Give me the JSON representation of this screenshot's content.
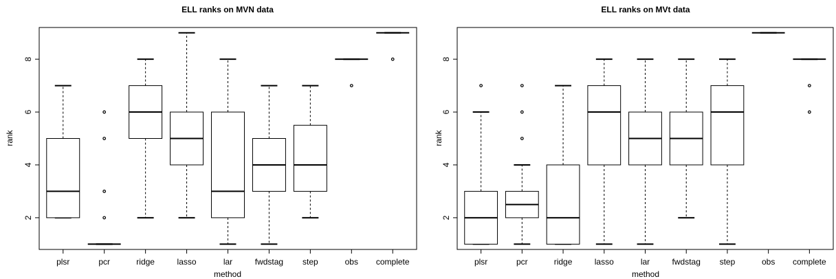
{
  "chart_data": [
    {
      "type": "boxplot",
      "title": "ELL ranks on MVN data",
      "xlabel": "method",
      "ylabel": "rank",
      "ylim": [
        0.8,
        9.2
      ],
      "yticks": [
        "2",
        "4",
        "6",
        "8"
      ],
      "grid": false,
      "categories": [
        "plsr",
        "pcr",
        "ridge",
        "lasso",
        "lar",
        "fwdstag",
        "step",
        "obs",
        "complete"
      ],
      "boxes": [
        {
          "whisker_low": 2,
          "q1": 2,
          "median": 3,
          "q3": 5,
          "whisker_high": 7,
          "outliers": []
        },
        {
          "whisker_low": 1,
          "q1": 1,
          "median": 1,
          "q3": 1,
          "whisker_high": 1,
          "outliers": [
            2,
            3,
            5,
            6
          ]
        },
        {
          "whisker_low": 2,
          "q1": 5,
          "median": 6,
          "q3": 7,
          "whisker_high": 8,
          "outliers": []
        },
        {
          "whisker_low": 2,
          "q1": 4,
          "median": 5,
          "q3": 6,
          "whisker_high": 9,
          "outliers": []
        },
        {
          "whisker_low": 1,
          "q1": 2,
          "median": 3,
          "q3": 6,
          "whisker_high": 8,
          "outliers": []
        },
        {
          "whisker_low": 1,
          "q1": 3,
          "median": 4,
          "q3": 5,
          "whisker_high": 7,
          "outliers": []
        },
        {
          "whisker_low": 2,
          "q1": 3,
          "median": 4,
          "q3": 5.5,
          "whisker_high": 7,
          "outliers": []
        },
        {
          "whisker_low": 8,
          "q1": 8,
          "median": 8,
          "q3": 8,
          "whisker_high": 8,
          "outliers": [
            7
          ]
        },
        {
          "whisker_low": 9,
          "q1": 9,
          "median": 9,
          "q3": 9,
          "whisker_high": 9,
          "outliers": [
            8
          ]
        }
      ]
    },
    {
      "type": "boxplot",
      "title": "ELL ranks on MVt data",
      "xlabel": "method",
      "ylabel": "rank",
      "ylim": [
        0.8,
        9.2
      ],
      "yticks": [
        "2",
        "4",
        "6",
        "8"
      ],
      "grid": false,
      "categories": [
        "plsr",
        "pcr",
        "ridge",
        "lasso",
        "lar",
        "fwdstag",
        "step",
        "obs",
        "complete"
      ],
      "boxes": [
        {
          "whisker_low": 1,
          "q1": 1,
          "median": 2,
          "q3": 3,
          "whisker_high": 6,
          "outliers": [
            7
          ]
        },
        {
          "whisker_low": 1,
          "q1": 2,
          "median": 2.5,
          "q3": 3,
          "whisker_high": 4,
          "outliers": [
            5,
            6,
            7
          ]
        },
        {
          "whisker_low": 1,
          "q1": 1,
          "median": 2,
          "q3": 4,
          "whisker_high": 7,
          "outliers": []
        },
        {
          "whisker_low": 1,
          "q1": 4,
          "median": 6,
          "q3": 7,
          "whisker_high": 8,
          "outliers": []
        },
        {
          "whisker_low": 1,
          "q1": 4,
          "median": 5,
          "q3": 6,
          "whisker_high": 8,
          "outliers": []
        },
        {
          "whisker_low": 2,
          "q1": 4,
          "median": 5,
          "q3": 6,
          "whisker_high": 8,
          "outliers": []
        },
        {
          "whisker_low": 1,
          "q1": 4,
          "median": 6,
          "q3": 7,
          "whisker_high": 8,
          "outliers": []
        },
        {
          "whisker_low": 9,
          "q1": 9,
          "median": 9,
          "q3": 9,
          "whisker_high": 9,
          "outliers": []
        },
        {
          "whisker_low": 8,
          "q1": 8,
          "median": 8,
          "q3": 8,
          "whisker_high": 8,
          "outliers": [
            6,
            7
          ]
        }
      ]
    }
  ]
}
